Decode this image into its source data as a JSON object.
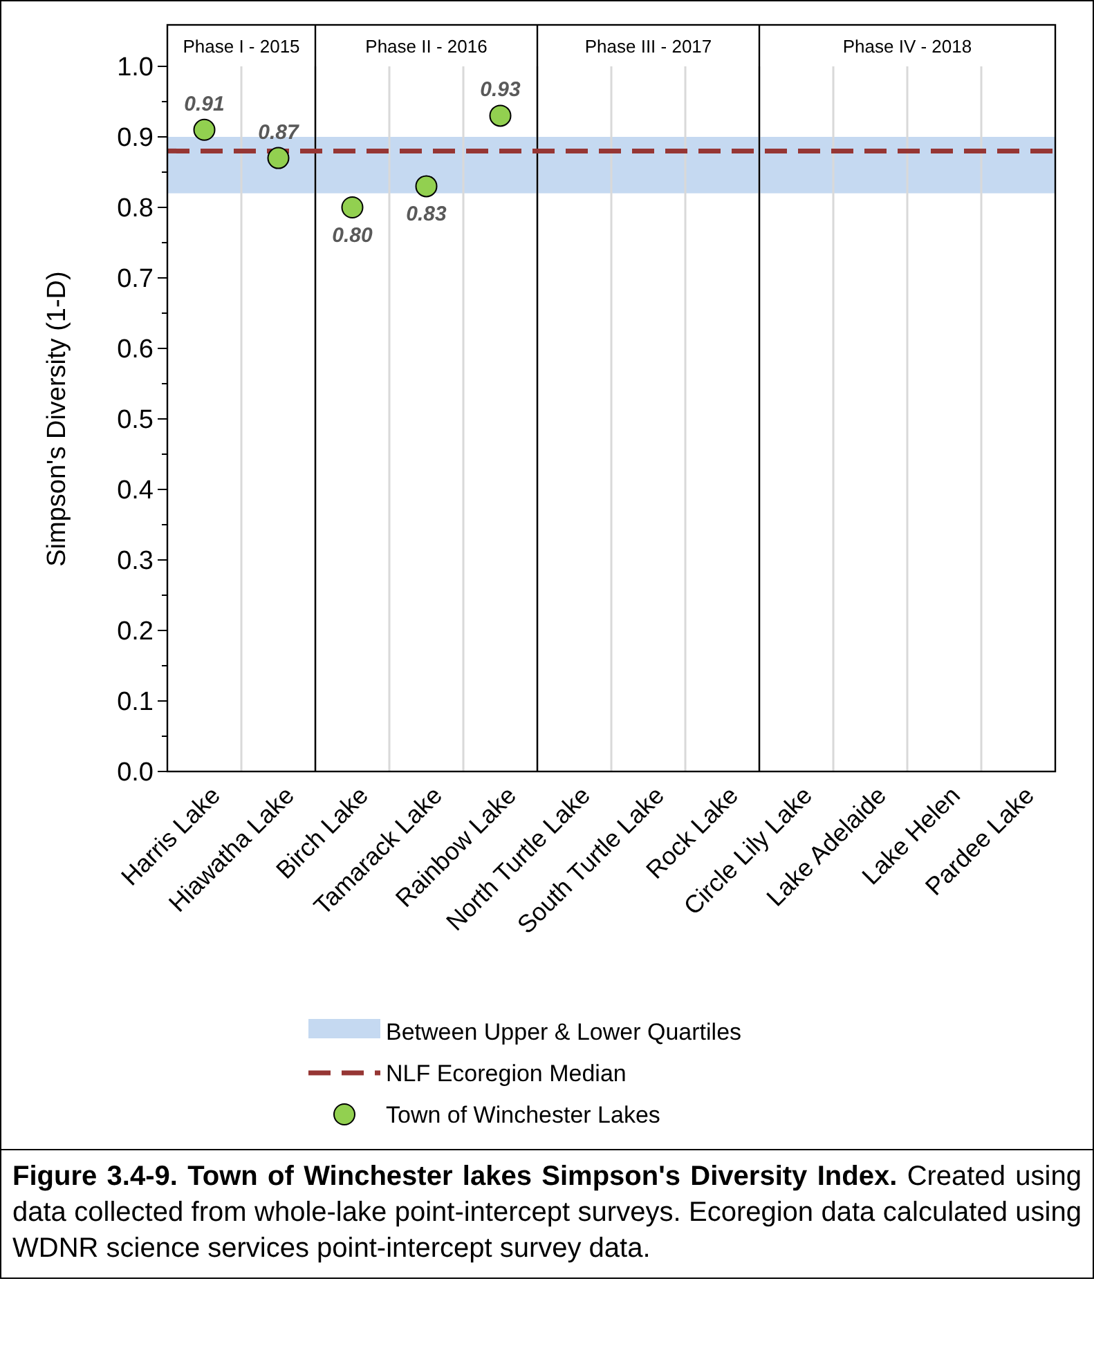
{
  "chart_data": {
    "type": "scatter",
    "ylabel": "Simpson's Diversity (1-D)",
    "categories": [
      "Harris Lake",
      "Hiawatha Lake",
      "Birch Lake",
      "Tamarack Lake",
      "Rainbow Lake",
      "North Turtle Lake",
      "South Turtle Lake",
      "Rock Lake",
      "Circle Lily Lake",
      "Lake Adelaide",
      "Lake Helen",
      "Pardee Lake"
    ],
    "series": [
      {
        "name": "Town of Winchester Lakes",
        "color": "#92d050",
        "values": [
          0.91,
          0.87,
          0.8,
          0.83,
          0.93,
          null,
          null,
          null,
          null,
          null,
          null,
          null
        ],
        "value_labels": [
          "0.91",
          "0.87",
          "0.80",
          "0.83",
          "0.93",
          null,
          null,
          null,
          null,
          null,
          null,
          null
        ]
      }
    ],
    "marker": "circle",
    "ylim": [
      0,
      1
    ],
    "yticks": [
      {
        "value": 0,
        "label": "0.0"
      },
      {
        "value": 0.05,
        "label": null
      },
      {
        "value": 0.1,
        "label": "0.1"
      },
      {
        "value": 0.15,
        "label": null
      },
      {
        "value": 0.2,
        "label": "0.2"
      },
      {
        "value": 0.25,
        "label": null
      },
      {
        "value": 0.3,
        "label": "0.3"
      },
      {
        "value": 0.35,
        "label": null
      },
      {
        "value": 0.4,
        "label": "0.4"
      },
      {
        "value": 0.45,
        "label": null
      },
      {
        "value": 0.5,
        "label": "0.5"
      },
      {
        "value": 0.55,
        "label": null
      },
      {
        "value": 0.6,
        "label": "0.6"
      },
      {
        "value": 0.65,
        "label": null
      },
      {
        "value": 0.7,
        "label": "0.7"
      },
      {
        "value": 0.75,
        "label": null
      },
      {
        "value": 0.8,
        "label": "0.8"
      },
      {
        "value": 0.85,
        "label": null
      },
      {
        "value": 0.9,
        "label": "0.9"
      },
      {
        "value": 0.95,
        "label": null
      },
      {
        "value": 1,
        "label": "1.0"
      }
    ],
    "bands": [
      {
        "axis": "y",
        "from": 0.82,
        "to": 0.9,
        "label": "Between Upper & Lower Quartiles",
        "color": "#c5d9f1"
      }
    ],
    "ref_lines": [
      {
        "axis": "y",
        "value": 0.88,
        "label": "NLF Ecoregion Median",
        "color": "#963634",
        "line_style": "dashed"
      }
    ],
    "grid": "x",
    "legend": "bottom",
    "annotations": [
      "Phase I - 2015",
      "Phase II - 2016",
      "Phase III - 2017",
      "Phase IV - 2018",
      "Figure 3.4-9.  Town of Winchester lakes Simpson's Diversity Index.",
      "Created using data collected from whole-lake point-intercept surveys.  Ecoregion data calculated using WDNR science services point-intercept survey data."
    ]
  }
}
